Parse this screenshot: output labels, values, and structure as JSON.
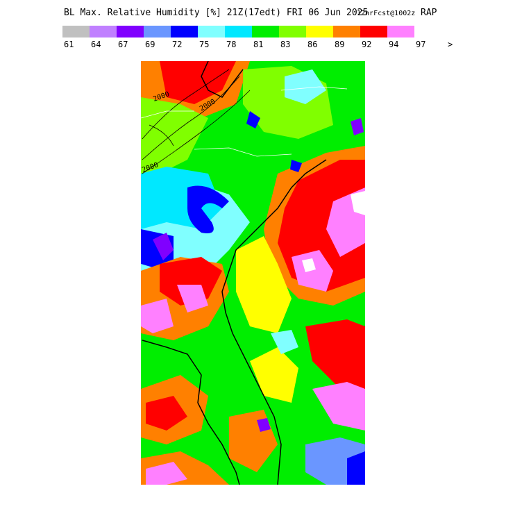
{
  "header": {
    "title": "BL Max. Relative Humidity [%] 21Z(17edt) FRI 06 Jun 2025",
    "forecast": "12hrFcst@1002z",
    "model": "RAP"
  },
  "legend": {
    "colors": [
      "#c0c0c0",
      "#c080ff",
      "#8000ff",
      "#6a96ff",
      "#0000ff",
      "#80ffff",
      "#00e8ff",
      "#00ee00",
      "#80ff00",
      "#ffff00",
      "#ff8000",
      "#ff0000",
      "#ff80ff"
    ],
    "labels": [
      "61",
      "64",
      "67",
      "69",
      "72",
      "75",
      "78",
      "81",
      "83",
      "86",
      "89",
      "92",
      "94",
      "97",
      ">"
    ]
  },
  "map": {
    "contour_labels": [
      "2000",
      "2000",
      "2000"
    ]
  }
}
